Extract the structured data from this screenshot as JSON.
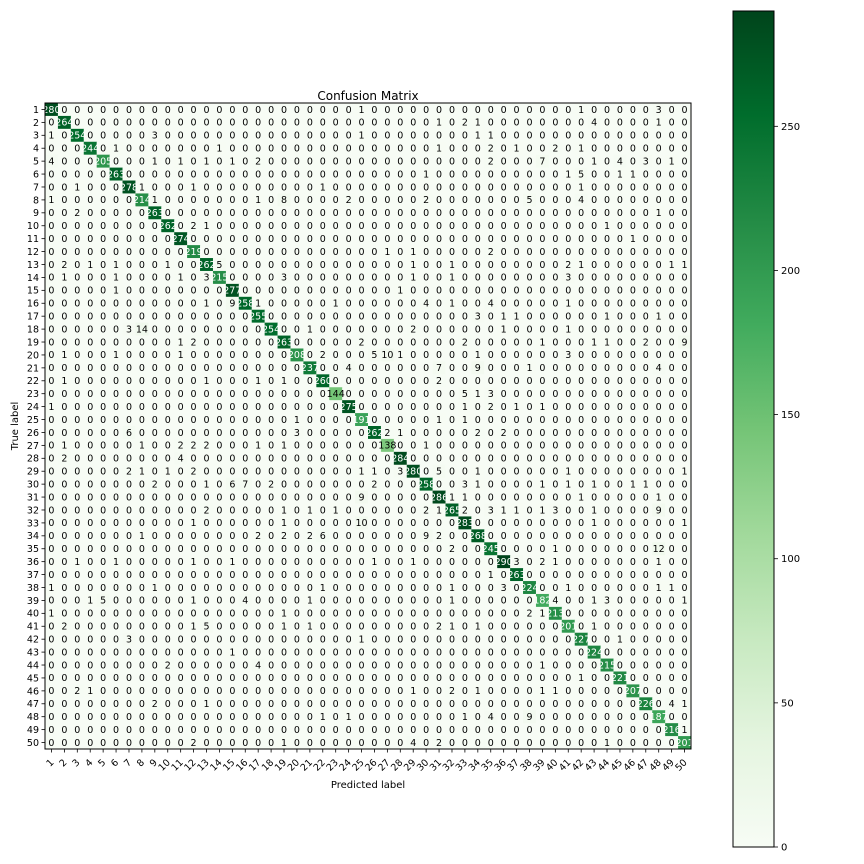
{
  "chart_data": [
    {
      "type": "heatmap",
      "title": "Confusion Matrix",
      "xlabel": "Predicted label",
      "ylabel": "True label",
      "categories": [
        "1",
        "2",
        "3",
        "4",
        "5",
        "6",
        "7",
        "8",
        "9",
        "10",
        "11",
        "12",
        "13",
        "14",
        "15",
        "16",
        "17",
        "18",
        "19",
        "20",
        "21",
        "22",
        "23",
        "24",
        "25",
        "26",
        "27",
        "28",
        "29",
        "30",
        "31",
        "32",
        "33",
        "34",
        "35",
        "36",
        "37",
        "38",
        "39",
        "40",
        "41",
        "42",
        "43",
        "44",
        "45",
        "46",
        "47",
        "48",
        "49",
        "50"
      ],
      "vmin": 0,
      "vmax": 290,
      "colorbar_ticks": [
        0,
        50,
        100,
        150,
        200,
        250
      ],
      "colormap": {
        "low": "#f7fcf5",
        "high": "#00441b"
      },
      "rows": [
        "280 0 0 0 0 0 0 0 0 0 0 0 0 0 0 0 0 0 0 0 0 0 0 0 1 0 0 0 0 0 0 0 0 0 0 0 0 0 0 0 0 1 0 0 0 0 0 3 0 0",
        "0 264 0 0 0 0 0 0 0 0 0 0 0 0 0 0 0 0 0 0 0 0 0 0 0 0 0 0 0 0 1 0 2 1 0 0 0 0 0 0 0 0 4 0 0 0 0 1 0 0",
        "1 0 254 0 0 0 0 0 3 0 0 0 0 0 0 0 0 0 0 0 0 0 0 0 1 0 0 0 0 0 0 0 0 1 1 0 0 0 0 0 0 0 0 0 0 0 0 0 0 0",
        "0 0 0 244 0 1 0 0 0 0 0 0 0 1 0 0 0 0 0 0 0 0 0 0 0 0 0 0 0 0 1 0 0 0 2 0 1 0 0 2 0 1 0 0 0 0 0 0 0 0",
        "4 0 0 0 205 0 0 0 1 0 1 0 1 0 1 0 2 0 0 0 0 0 0 0 0 0 0 0 0 0 0 0 0 0 2 0 0 0 7 0 0 0 1 0 4 0 3 0 1 0",
        "0 0 0 0 0 263 0 0 0 0 0 0 0 0 0 0 0 0 0 0 0 0 0 0 0 0 0 0 0 1 0 0 0 0 0 0 0 0 0 0 1 5 0 0 1 1 0 0 0 0",
        "0 0 1 0 0 0 278 1 0 0 0 1 0 0 0 0 0 0 0 0 0 1 0 0 0 0 0 0 0 0 0 0 0 0 0 0 0 0 0 0 0 1 0 0 0 0 0 0 0 0",
        "1 0 0 0 0 0 0 214 1 0 0 0 0 0 0 0 1 0 8 0 0 0 0 2 0 0 0 0 0 2 0 0 0 0 0 0 0 5 0 0 0 4 0 0 0 0 0 0 0 0",
        "0 0 2 0 0 0 0 0 263 0 0 0 0 0 0 0 0 0 0 0 0 0 0 0 0 0 0 0 0 0 0 0 0 0 0 0 0 0 0 0 0 0 0 0 0 0 0 1 0 0",
        "0 0 0 0 0 0 0 0 0 262 0 2 1 0 0 0 0 0 0 0 0 0 0 0 0 0 0 0 0 0 0 0 0 0 0 0 0 0 0 0 0 0 0 1 0 0 0 0 0 0",
        "0 0 0 0 0 0 0 0 0 0 274 0 0 0 0 0 0 0 0 0 0 0 0 0 0 0 0 0 0 0 0 0 0 0 0 0 0 0 0 0 0 0 0 0 0 1 0 0 0 0",
        "0 0 0 0 0 0 0 0 0 0 0 219 0 0 0 0 0 0 0 0 0 0 0 0 0 0 1 0 1 0 0 0 0 0 2 0 0 0 0 0 0 0 0 0 0 0 0 0 0 0",
        "0 2 0 1 0 1 0 0 0 1 0 0 262 5 0 0 0 0 0 0 0 0 0 0 0 0 0 0 1 0 0 1 0 0 0 0 0 0 0 0 2 1 0 0 0 0 0 0 1 1",
        "0 1 0 0 0 1 0 0 0 0 1 0 3 215 0 0 0 0 3 0 0 0 0 0 0 0 0 0 1 0 0 1 0 0 0 0 0 0 0 0 3 0 0 0 0 0 0 0 0 0",
        "0 0 0 0 0 1 0 0 0 0 0 0 0 0 277 0 0 0 0 0 0 0 0 0 0 0 0 1 0 0 0 0 0 0 0 0 0 0 0 0 0 0 0 0 0 0 0 0 0 0",
        "0 0 0 0 0 0 0 0 0 0 0 0 1 0 9 258 1 0 0 0 0 0 1 0 0 0 0 0 0 4 0 1 0 0 4 0 0 0 0 0 1 0 0 0 0 0 0 0 0 0",
        "0 0 0 0 0 0 0 0 0 0 0 0 0 0 0 0 255 0 0 0 0 0 0 0 0 0 0 0 0 0 0 0 0 3 0 1 1 0 0 0 0 0 0 1 0 0 0 1 0 0",
        "0 0 0 0 0 0 3 14 0 0 0 0 0 0 0 0 0 254 0 0 1 0 0 0 0 0 0 0 2 0 0 0 0 0 0 1 0 0 0 0 1 0 0 0 0 0 0 0 0 0",
        "0 0 0 0 0 0 0 0 0 0 1 2 0 0 0 0 0 0 263 0 0 0 0 0 2 0 0 0 0 0 0 0 2 0 0 0 0 0 1 0 0 0 1 1 0 0 2 0 0 9",
        "0 1 0 0 0 1 0 0 0 0 1 0 0 0 0 0 0 0 0 208 0 2 0 0 0 5 10 1 0 0 0 0 0 1 0 0 0 0 0 0 3 0 0 0 0 0 0 0 0 0",
        "0 0 0 0 0 0 0 0 0 0 0 0 0 0 0 0 0 0 0 0 237 0 0 4 0 0 0 0 0 0 7 0 0 9 0 0 0 1 0 0 0 0 0 0 0 0 0 4 0 0",
        "0 1 0 0 0 0 0 0 0 0 0 0 1 0 0 0 1 0 1 0 0 260 0 0 0 0 0 0 0 0 2 0 0 0 0 0 0 0 0 0 0 0 0 0 0 0 0 0 0 0",
        "0 0 0 0 0 0 0 0 0 0 0 0 0 0 0 0 0 0 0 0 0 0 144 0 0 0 0 0 0 0 0 0 5 1 3 0 0 0 0 0 0 0 0 0 0 0 0 0 0 0",
        "1 0 0 0 0 0 0 0 0 0 0 0 0 0 0 0 0 0 0 0 0 0 0 275 0 0 0 0 0 0 0 0 1 0 2 0 1 0 1 0 0 0 0 0 0 0 0 0 0 0",
        "0 0 0 0 0 0 0 0 0 0 0 0 0 0 0 0 0 0 0 1 0 0 0 0 191 0 0 0 0 0 1 0 1 0 0 0 0 0 0 0 0 0 0 0 0 0 0 0 0 0",
        "0 0 0 0 0 0 6 0 0 0 0 0 0 0 0 0 0 0 0 3 0 0 0 0 0 262 2 1 0 0 0 0 0 2 0 2 0 0 0 0 0 0 0 0 0 0 0 0 0 0",
        "0 1 0 0 0 0 0 1 0 0 2 2 2 0 0 0 1 0 1 0 0 0 0 0 0 0 138 0 0 1 0 0 0 0 0 0 0 0 0 0 0 0 0 0 0 0 0 0 0 0",
        "0 2 0 0 0 0 0 0 0 0 4 0 0 0 0 0 0 0 0 0 0 0 0 0 0 0 0 284 0 0 0 0 0 0 0 0 0 0 0 0 0 0 0 0 0 0 0 0 0 0",
        "0 0 0 0 0 0 2 1 0 1 0 2 0 0 0 0 0 0 0 0 0 0 0 0 1 1 0 3 280 0 5 0 0 1 0 0 0 0 0 0 1 0 0 0 0 0 0 0 0 1",
        "0 0 0 0 0 0 0 0 2 0 0 0 1 0 6 7 0 2 0 0 0 0 0 0 0 2 0 0 0 258 0 0 3 1 0 0 0 0 1 0 1 0 1 0 0 1 1 0 0 0",
        "0 0 0 0 0 0 0 0 0 0 0 0 0 0 0 0 0 0 0 0 0 0 0 0 9 0 0 0 0 0 286 1 1 0 0 0 0 0 0 0 0 1 0 0 0 0 0 1 0 0",
        "0 0 0 0 0 0 0 0 0 0 0 0 2 0 0 0 0 0 1 0 1 0 1 0 0 0 0 0 0 2 1 265 2 0 3 1 1 0 1 3 0 0 1 0 0 0 0 9 0 0",
        "0 0 0 0 0 0 0 0 0 0 0 1 0 0 0 0 0 0 1 0 0 0 0 0 10 0 0 0 0 0 0 0 283 0 0 0 0 0 0 0 0 0 1 0 0 0 0 0 0 1",
        "0 0 0 0 0 0 0 1 0 0 0 0 0 0 0 0 2 0 2 0 2 6 0 0 0 0 0 0 0 9 2 0 0 268 0 0 0 0 0 0 0 0 0 0 0 0 0 0 0 0",
        "0 0 0 0 0 0 0 0 0 0 0 0 0 0 0 0 0 0 0 0 0 0 0 0 0 0 0 0 0 0 0 2 0 0 245 0 0 0 0 1 0 0 0 0 0 0 0 12 0 0",
        "0 0 1 0 0 1 0 0 0 0 0 1 0 0 1 0 0 0 0 0 0 0 0 0 0 1 0 0 1 0 0 0 0 0 0 290 3 0 2 1 0 0 0 0 0 0 0 1 0 0",
        "0 0 0 0 0 0 0 0 0 0 0 0 0 0 0 0 0 0 0 0 0 0 0 0 0 0 0 0 0 0 0 0 0 0 1 0 263 0 0 0 0 0 0 0 0 0 0 0 0 0",
        "1 0 0 0 0 0 0 0 1 0 0 0 0 0 0 0 0 0 0 0 0 1 0 0 0 0 0 0 0 0 0 1 0 0 0 3 0 224 0 0 1 0 0 0 0 0 0 1 1 0",
        "0 0 0 1 5 0 0 0 0 0 0 1 0 0 0 4 0 0 0 0 1 0 0 0 0 0 0 0 0 0 0 1 0 0 0 0 0 0 182 4 0 0 1 3 0 0 0 0 0 1",
        "1 0 0 0 0 0 0 0 0 0 0 0 0 0 0 0 0 0 1 0 0 0 0 0 0 0 0 0 0 0 0 0 0 0 0 0 0 2 1 213 0 0 0 0 0 0 0 0 0 0",
        "0 2 0 0 0 0 0 0 0 0 0 1 5 0 0 0 0 0 1 0 1 0 0 0 0 0 0 0 0 0 2 1 0 1 0 0 0 0 0 0 201 0 1 0 0 0 0 0 0 0",
        "0 0 0 0 0 0 3 0 0 0 0 0 0 0 0 0 0 0 0 0 0 0 0 0 1 0 0 0 0 0 0 0 0 0 0 0 0 0 0 0 0 227 0 0 1 0 0 0 0 0",
        "0 0 0 0 0 0 0 0 0 0 0 0 0 0 1 0 0 0 0 0 0 0 0 0 0 0 0 0 0 0 0 0 0 0 0 0 0 0 0 0 0 0 224 0 0 0 0 0 0 0",
        "0 0 0 0 0 0 0 0 0 2 0 0 0 0 0 0 4 0 0 0 0 0 0 0 0 0 0 0 0 0 0 0 0 0 0 0 0 0 1 0 0 0 0 215 0 0 0 0 0 0",
        "0 0 0 0 0 0 0 0 0 0 0 0 0 0 0 0 0 0 0 0 0 0 0 0 0 0 0 0 0 0 0 0 0 0 0 0 0 0 0 0 0 1 0 0 221 0 0 0 0 0",
        "0 0 2 1 0 0 0 0 0 0 0 0 0 0 0 0 0 0 0 0 0 0 0 0 0 0 0 0 1 0 0 2 0 1 0 0 0 0 1 1 0 0 0 0 0 207 0 0 0 0",
        "0 0 0 0 0 0 0 0 2 0 0 0 1 0 0 0 0 0 0 0 0 0 0 0 0 0 0 0 0 0 0 0 0 0 0 0 0 0 0 0 0 0 0 0 0 0 226 0 4 1",
        "0 0 0 0 0 0 0 0 0 0 0 0 0 0 0 0 0 0 0 0 0 1 0 1 0 0 0 0 0 0 0 0 1 0 4 0 0 9 0 0 0 0 0 0 0 0 0 187 0 0",
        "0 0 0 0 0 0 0 0 0 0 0 0 0 0 0 0 0 0 0 0 0 0 0 0 0 0 0 0 0 0 0 0 0 0 0 0 0 0 0 0 0 0 0 0 0 0 0 0 216 1",
        "0 0 0 0 0 0 0 0 0 0 0 2 0 0 0 0 0 0 1 0 0 0 0 0 0 0 0 0 4 0 2 0 0 0 0 0 0 0 0 0 0 0 0 1 0 0 0 0 0 201"
      ]
    }
  ]
}
